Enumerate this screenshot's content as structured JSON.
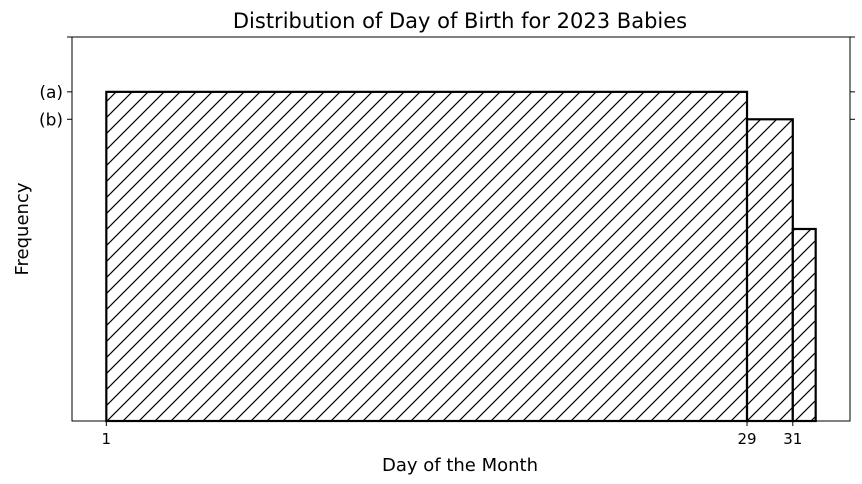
{
  "chart_data": {
    "type": "bar",
    "title": "Distribution of Day of Birth for 2023 Babies",
    "xlabel": "Day of the Month",
    "ylabel": "Frequency",
    "bars": [
      {
        "from": 1,
        "to": 29,
        "value": 12
      },
      {
        "from": 29,
        "to": 31,
        "value": 11
      },
      {
        "from": 31,
        "to": 32,
        "value": 7
      }
    ],
    "xticks": [
      {
        "value": 1,
        "label": "1"
      },
      {
        "value": 29,
        "label": "29"
      },
      {
        "value": 31,
        "label": "31"
      }
    ],
    "yticks": [
      {
        "value": 12,
        "label": "(a)"
      },
      {
        "value": 11,
        "label": "(b)"
      }
    ],
    "xlim": [
      -0.5,
      33.5
    ],
    "ylim": [
      0,
      14
    ],
    "grid": false,
    "hatch": "diagonal",
    "colors": {
      "edge": "#000000",
      "fill": "#ffffff"
    }
  }
}
